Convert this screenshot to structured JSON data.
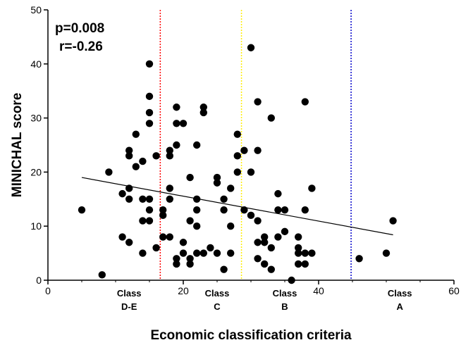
{
  "chart_data": {
    "type": "scatter",
    "xlabel": "Economic classification criteria",
    "ylabel": "MINICHAL score",
    "xlim": [
      0,
      60
    ],
    "ylim": [
      0,
      50
    ],
    "x_ticks": [
      "0",
      "20",
      "40",
      "60"
    ],
    "y_ticks": [
      "0",
      "10",
      "20",
      "30",
      "40",
      "50"
    ],
    "x_tick_values": [
      0,
      20,
      40,
      60
    ],
    "y_tick_values": [
      0,
      10,
      20,
      30,
      40,
      50
    ],
    "annotations": {
      "p": "p=0.008",
      "r": "r=-0.26"
    },
    "class_labels": [
      {
        "line1": "Class",
        "line2": "D-E",
        "x": 12
      },
      {
        "line1": "Class",
        "line2": "C",
        "x": 25
      },
      {
        "line1": "Class",
        "line2": "B",
        "x": 35
      },
      {
        "line1": "Class",
        "line2": "A",
        "x": 52
      }
    ],
    "cutoff_lines": [
      {
        "x": 16.6,
        "color": "#ff0000"
      },
      {
        "x": 28.6,
        "color": "#ffee00"
      },
      {
        "x": 44.8,
        "color": "#0000cc"
      }
    ],
    "regression_line": {
      "x": [
        5,
        51
      ],
      "y": [
        19,
        8.4
      ]
    },
    "points": [
      [
        5,
        13
      ],
      [
        8,
        1
      ],
      [
        9,
        20
      ],
      [
        11,
        8
      ],
      [
        11,
        16
      ],
      [
        12,
        17
      ],
      [
        12,
        15
      ],
      [
        12,
        23
      ],
      [
        12,
        24
      ],
      [
        12,
        7
      ],
      [
        13,
        27
      ],
      [
        13,
        21
      ],
      [
        14,
        22
      ],
      [
        14,
        15
      ],
      [
        14,
        11
      ],
      [
        14,
        5
      ],
      [
        15,
        13
      ],
      [
        15,
        11
      ],
      [
        15,
        15
      ],
      [
        15,
        29
      ],
      [
        15,
        31
      ],
      [
        15,
        34
      ],
      [
        15,
        40
      ],
      [
        16,
        6
      ],
      [
        16,
        23
      ],
      [
        17,
        12
      ],
      [
        17,
        13
      ],
      [
        17,
        8
      ],
      [
        18,
        8
      ],
      [
        18,
        15
      ],
      [
        18,
        17
      ],
      [
        18,
        23
      ],
      [
        18,
        24
      ],
      [
        19,
        25
      ],
      [
        19,
        29
      ],
      [
        19,
        32
      ],
      [
        19,
        3
      ],
      [
        19,
        4
      ],
      [
        20,
        5
      ],
      [
        20,
        7
      ],
      [
        20,
        29
      ],
      [
        21,
        19
      ],
      [
        21,
        11
      ],
      [
        21,
        4
      ],
      [
        21,
        3
      ],
      [
        22,
        10
      ],
      [
        22,
        5
      ],
      [
        22,
        13
      ],
      [
        22,
        15
      ],
      [
        22,
        25
      ],
      [
        23,
        31
      ],
      [
        23,
        32
      ],
      [
        23,
        5
      ],
      [
        24,
        6
      ],
      [
        25,
        5
      ],
      [
        25,
        18
      ],
      [
        25,
        19
      ],
      [
        26,
        15
      ],
      [
        26,
        13
      ],
      [
        26,
        2
      ],
      [
        27,
        10
      ],
      [
        27,
        17
      ],
      [
        27,
        5
      ],
      [
        28,
        27
      ],
      [
        28,
        23
      ],
      [
        28,
        20
      ],
      [
        29,
        24
      ],
      [
        29,
        13
      ],
      [
        30,
        43
      ],
      [
        30,
        20
      ],
      [
        30,
        12
      ],
      [
        31,
        33
      ],
      [
        31,
        24
      ],
      [
        31,
        11
      ],
      [
        31,
        7
      ],
      [
        31,
        4
      ],
      [
        32,
        8
      ],
      [
        32,
        7
      ],
      [
        32,
        3
      ],
      [
        33,
        30
      ],
      [
        33,
        6
      ],
      [
        33,
        2
      ],
      [
        34,
        8
      ],
      [
        34,
        16
      ],
      [
        34,
        13
      ],
      [
        35,
        9
      ],
      [
        35,
        13
      ],
      [
        36,
        0
      ],
      [
        37,
        8
      ],
      [
        37,
        6
      ],
      [
        37,
        5
      ],
      [
        37,
        3
      ],
      [
        38,
        33
      ],
      [
        38,
        13
      ],
      [
        38,
        5
      ],
      [
        38,
        3
      ],
      [
        39,
        17
      ],
      [
        39,
        5
      ],
      [
        46,
        4
      ],
      [
        50,
        5
      ],
      [
        51,
        11
      ]
    ]
  }
}
